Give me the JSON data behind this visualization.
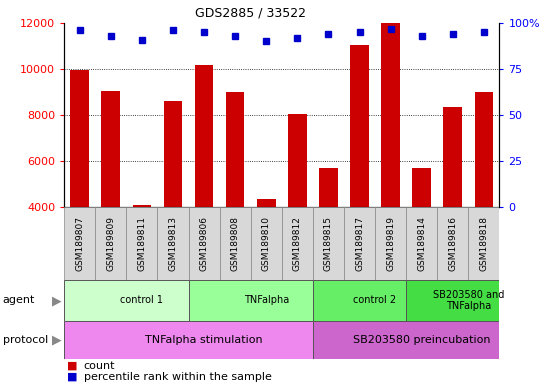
{
  "title": "GDS2885 / 33522",
  "samples": [
    "GSM189807",
    "GSM189809",
    "GSM189811",
    "GSM189813",
    "GSM189806",
    "GSM189808",
    "GSM189810",
    "GSM189812",
    "GSM189815",
    "GSM189817",
    "GSM189819",
    "GSM189814",
    "GSM189816",
    "GSM189818"
  ],
  "counts": [
    9950,
    9050,
    4100,
    8600,
    10200,
    9000,
    4350,
    8050,
    5700,
    11050,
    12000,
    5700,
    8350,
    9000
  ],
  "percentiles": [
    96,
    93,
    91,
    96,
    95,
    93,
    90,
    92,
    94,
    95,
    97,
    93,
    94,
    95
  ],
  "ylim_left": [
    4000,
    12000
  ],
  "ylim_right": [
    0,
    100
  ],
  "yticks_left": [
    4000,
    6000,
    8000,
    10000,
    12000
  ],
  "yticks_right": [
    0,
    25,
    50,
    75,
    100
  ],
  "bar_color": "#cc0000",
  "dot_color": "#0000cc",
  "agent_groups": [
    {
      "label": "control 1",
      "start": 0,
      "end": 4,
      "color": "#ccffcc"
    },
    {
      "label": "TNFalpha",
      "start": 4,
      "end": 8,
      "color": "#99ff99"
    },
    {
      "label": "control 2",
      "start": 8,
      "end": 11,
      "color": "#66ee66"
    },
    {
      "label": "SB203580 and\nTNFalpha",
      "start": 11,
      "end": 14,
      "color": "#44dd44"
    }
  ],
  "protocol_groups": [
    {
      "label": "TNFalpha stimulation",
      "start": 0,
      "end": 8,
      "color": "#ee88ee"
    },
    {
      "label": "SB203580 preincubation",
      "start": 8,
      "end": 14,
      "color": "#cc66cc"
    }
  ],
  "agent_label": "agent",
  "protocol_label": "protocol",
  "legend_count": "count",
  "legend_pct": "percentile rank within the sample",
  "tick_bg_color": "#d8d8d8",
  "chart_bg": "#ffffff"
}
